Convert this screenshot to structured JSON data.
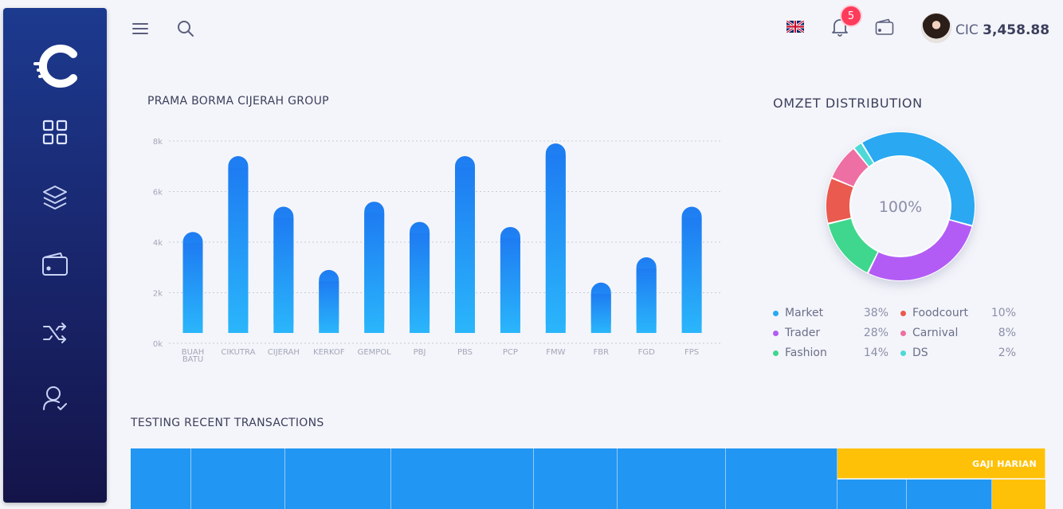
{
  "header": {
    "notification_count": "5",
    "currency": "CIC",
    "balance": "3,458.88"
  },
  "sidebar": {
    "items": [
      {
        "icon": "grid-icon"
      },
      {
        "icon": "layers-icon"
      },
      {
        "icon": "wallet-icon"
      },
      {
        "icon": "shuffle-icon"
      },
      {
        "icon": "user-check-icon"
      }
    ]
  },
  "bar_chart": {
    "title": "PRAMA BORMA CIJERAH GROUP"
  },
  "donut": {
    "title": "OMZET DISTRIBUTION",
    "center_label": "100%",
    "legend": [
      {
        "label": "Market",
        "pct": "38%",
        "color": "#2aa8f2"
      },
      {
        "label": "Trader",
        "pct": "28%",
        "color": "#b25cf5"
      },
      {
        "label": "Fashion",
        "pct": "14%",
        "color": "#3fd68e"
      },
      {
        "label": "Foodcourt",
        "pct": "10%",
        "color": "#ea5a4e"
      },
      {
        "label": "Carnival",
        "pct": "8%",
        "color": "#ee6fa3"
      },
      {
        "label": "DS",
        "pct": "2%",
        "color": "#4ed9d7"
      }
    ]
  },
  "transactions": {
    "title": "TESTING RECENT TRANSACTIONS",
    "group_header": "GAJI HARIAN"
  },
  "colors": {
    "bar_top": "#1e7cf2",
    "bar_bottom": "#2ab6fb",
    "table_blue": "#2196f3",
    "table_yellow": "#ffc107"
  },
  "chart_data": [
    {
      "type": "bar",
      "title": "PRAMA BORMA CIJERAH GROUP",
      "categories": [
        "BUAH BATU",
        "CIKUTRA",
        "CIJERAH",
        "KERKOF",
        "GEMPOL",
        "PBJ",
        "PBS",
        "PCP",
        "FMW",
        "FBR",
        "FGD",
        "FPS"
      ],
      "values": [
        4400,
        7400,
        5400,
        2900,
        5600,
        4800,
        7400,
        4600,
        7900,
        2400,
        3400,
        5400
      ],
      "ylim": [
        0,
        8000
      ],
      "yticks": [
        "0k",
        "2k",
        "4k",
        "6k",
        "8k"
      ],
      "grid": true
    },
    {
      "type": "pie",
      "title": "OMZET DISTRIBUTION",
      "categories": [
        "Market",
        "Trader",
        "Fashion",
        "Foodcourt",
        "Carnival",
        "DS"
      ],
      "values": [
        38,
        28,
        14,
        10,
        8,
        2
      ]
    }
  ]
}
